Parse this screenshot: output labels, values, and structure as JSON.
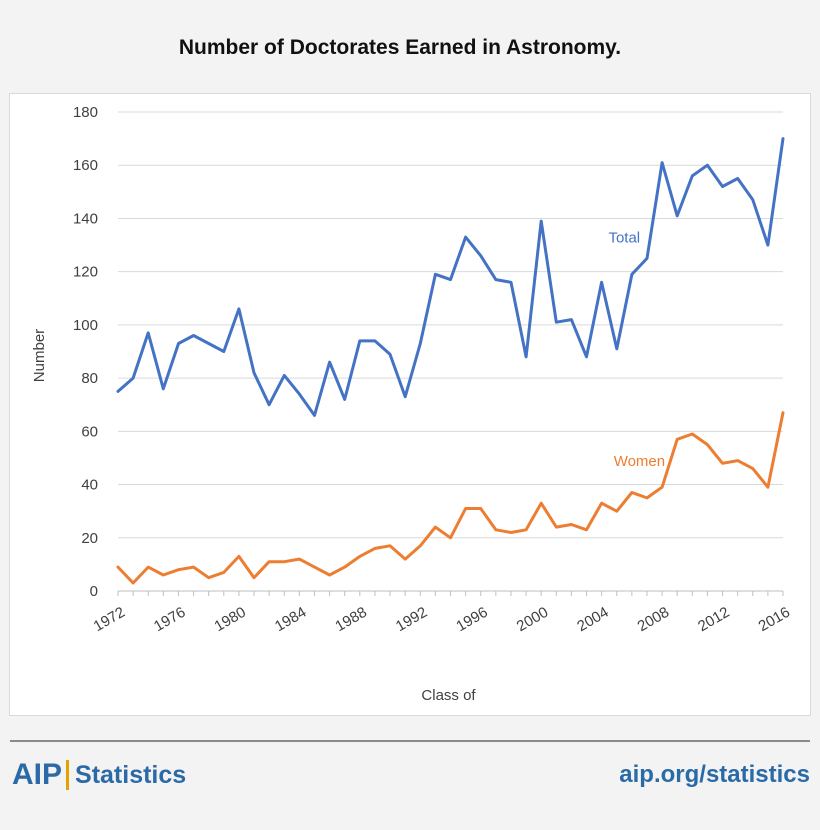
{
  "chart_data": {
    "type": "line",
    "title": "Number of Doctorates Earned in Astronomy.",
    "xlabel": "Class of",
    "ylabel": "Number",
    "ylim": [
      0,
      180
    ],
    "yticks": [
      0,
      20,
      40,
      60,
      80,
      100,
      120,
      140,
      160,
      180
    ],
    "xlim": [
      1972,
      2016
    ],
    "xticks": [
      "1972",
      "1976",
      "1980",
      "1984",
      "1988",
      "1992",
      "1996",
      "2000",
      "2004",
      "2008",
      "2012",
      "2016"
    ],
    "grid": true,
    "x": [
      1972,
      1973,
      1974,
      1975,
      1976,
      1977,
      1978,
      1979,
      1980,
      1981,
      1982,
      1983,
      1984,
      1985,
      1986,
      1987,
      1988,
      1989,
      1990,
      1991,
      1992,
      1993,
      1994,
      1995,
      1996,
      1997,
      1998,
      1999,
      2000,
      2001,
      2002,
      2003,
      2004,
      2005,
      2006,
      2007,
      2008,
      2009,
      2010,
      2011,
      2012,
      2013,
      2014,
      2015,
      2016
    ],
    "series": [
      {
        "name": "Total",
        "color": "#4472c4",
        "values": [
          75,
          80,
          97,
          76,
          93,
          96,
          93,
          90,
          106,
          82,
          70,
          81,
          74,
          66,
          86,
          72,
          94,
          94,
          89,
          73,
          93,
          119,
          117,
          133,
          126,
          117,
          116,
          88,
          139,
          101,
          102,
          88,
          116,
          91,
          119,
          125,
          161,
          141,
          156,
          160,
          152,
          155,
          147,
          130,
          170
        ]
      },
      {
        "name": "Women",
        "color": "#ed7d31",
        "values": [
          9,
          3,
          9,
          6,
          8,
          9,
          5,
          7,
          13,
          5,
          11,
          11,
          12,
          9,
          6,
          9,
          13,
          16,
          17,
          12,
          17,
          24,
          20,
          31,
          31,
          23,
          22,
          23,
          33,
          24,
          25,
          23,
          33,
          30,
          37,
          35,
          39,
          57,
          59,
          55,
          48,
          49,
          46,
          39,
          67
        ]
      }
    ],
    "annotations": [
      {
        "text": "Total",
        "series": "Total"
      },
      {
        "text": "Women",
        "series": "Women"
      }
    ]
  },
  "footer": {
    "brand": "AIP",
    "section": "Statistics",
    "url": "aip.org/statistics"
  }
}
